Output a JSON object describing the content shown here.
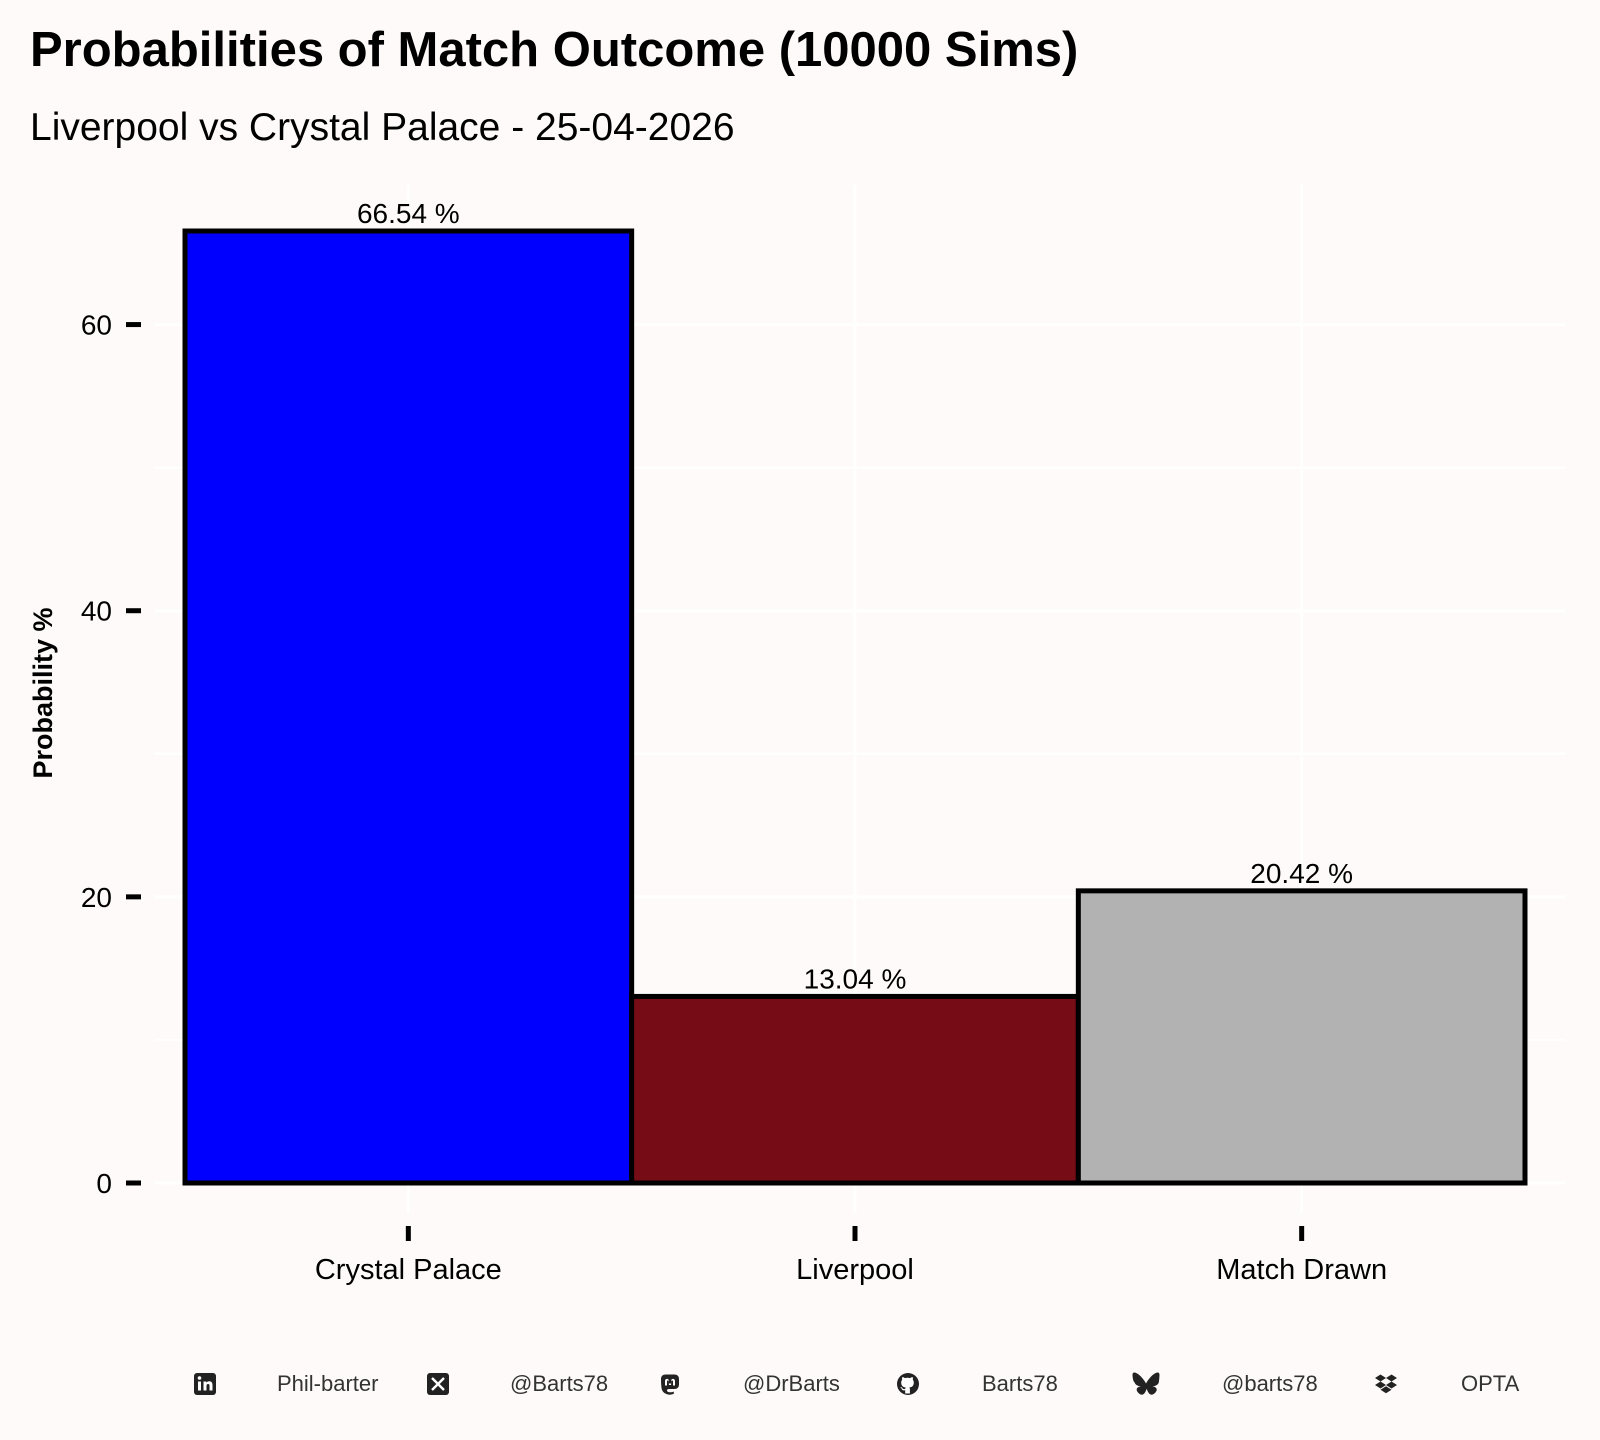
{
  "chart_data": {
    "type": "bar",
    "title": "Probabilities of Match Outcome (10000 Sims)",
    "subtitle": "Liverpool vs Crystal Palace - 25-04-2026",
    "ylabel": "Probability %",
    "xlabel": "",
    "ylim": [
      0,
      66.54
    ],
    "y_ticks": [
      0,
      20,
      40,
      60
    ],
    "grid": true,
    "legend": "none",
    "categories": [
      "Crystal Palace",
      "Liverpool",
      "Match Drawn"
    ],
    "values": [
      66.54,
      13.04,
      20.42
    ],
    "value_labels": [
      "66.54  %",
      "13.04  %",
      "20.42  %"
    ],
    "colors": [
      "#0000ff",
      "#760d16",
      "#b2b2b2"
    ]
  },
  "caption": {
    "items": [
      {
        "icon": "linkedin-icon",
        "text": "Phil-barter"
      },
      {
        "icon": "x-icon",
        "text": "@Barts78"
      },
      {
        "icon": "mastodon-icon",
        "text": "@DrBarts"
      },
      {
        "icon": "github-icon",
        "text": "Barts78"
      },
      {
        "icon": "bluesky-icon",
        "text": "@barts78"
      },
      {
        "icon": "dropbox-icon",
        "text": "OPTA"
      }
    ]
  }
}
